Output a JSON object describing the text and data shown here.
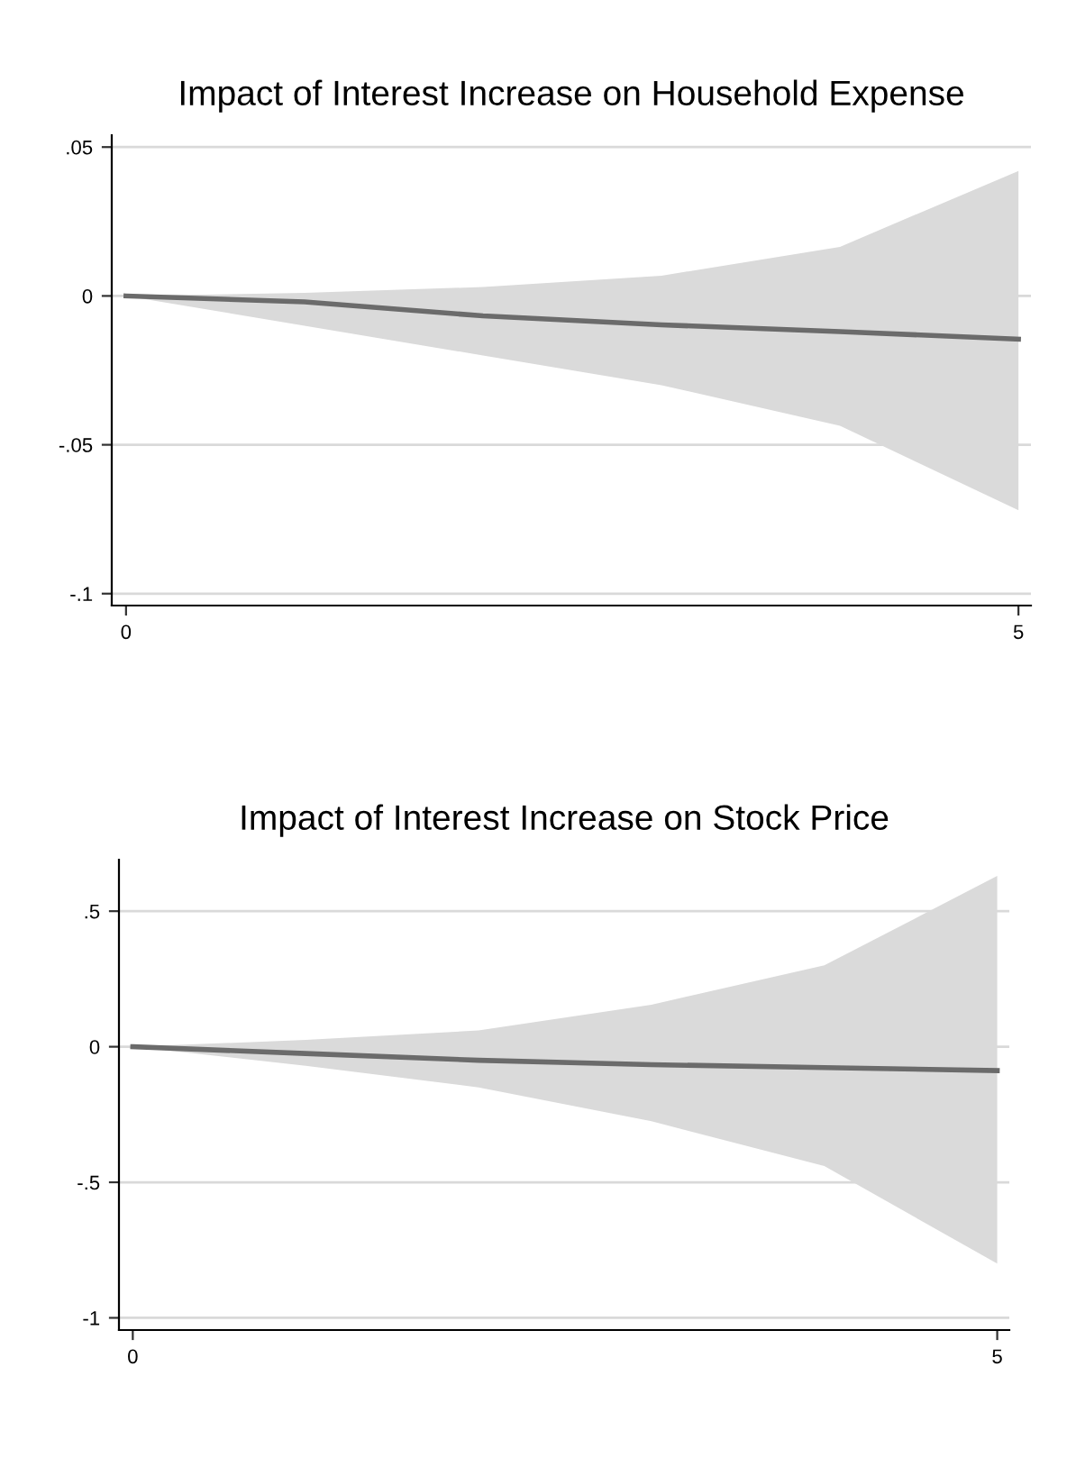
{
  "chart_data": [
    {
      "type": "line",
      "title": "Impact of Interest Increase on Household Expense",
      "x": [
        0,
        1,
        2,
        3,
        4,
        5
      ],
      "series": [
        {
          "color": "#6b6b6b",
          "values": [
            0,
            -0.002,
            -0.0067,
            -0.0097,
            -0.012,
            -0.0145
          ],
          "lower": [
            0,
            -0.01,
            -0.02,
            -0.03,
            -0.0436,
            -0.072
          ],
          "upper": [
            0,
            0.001,
            0.003,
            0.0068,
            0.0165,
            0.042
          ]
        }
      ],
      "xlim": [
        -0.08,
        5.07
      ],
      "ylim": [
        -0.104,
        0.054
      ],
      "xticks": [
        0,
        5
      ],
      "yticks": [
        {
          "value": 0.05,
          "label": ".05"
        },
        0,
        {
          "value": -0.05,
          "label": "-.05"
        },
        {
          "value": -0.1,
          "label": "-.1"
        }
      ],
      "grid": "y",
      "marker": "none",
      "line_style": "solid"
    },
    {
      "type": "line",
      "title": "Impact of Interest Increase on Stock Price",
      "x": [
        0,
        1,
        2,
        3,
        4,
        5
      ],
      "series": [
        {
          "color": "#6b6b6b",
          "values": [
            0,
            -0.025,
            -0.05,
            -0.066,
            -0.077,
            -0.088
          ],
          "lower": [
            0,
            -0.07,
            -0.15,
            -0.275,
            -0.44,
            -0.8
          ],
          "upper": [
            0,
            0.025,
            0.06,
            0.155,
            0.3,
            0.63
          ]
        }
      ],
      "xlim": [
        -0.08,
        5.07
      ],
      "ylim": [
        -1.045,
        0.69
      ],
      "xticks": [
        0,
        5
      ],
      "yticks": [
        {
          "value": 0.5,
          "label": ".5"
        },
        0,
        {
          "value": -0.5,
          "label": "-.5"
        },
        {
          "value": -1,
          "label": "-1"
        }
      ],
      "grid": "y",
      "marker": "none",
      "line_style": "solid"
    }
  ]
}
